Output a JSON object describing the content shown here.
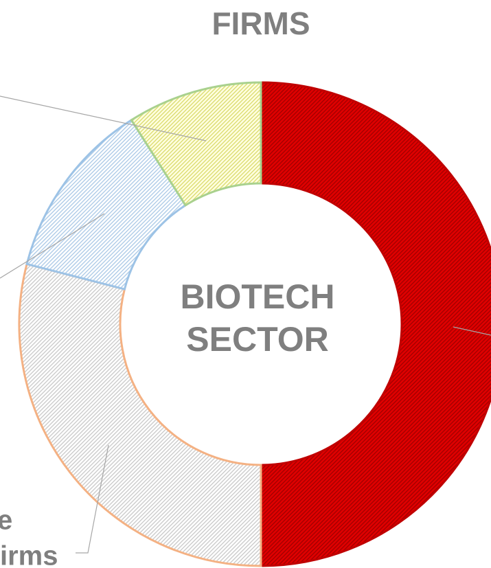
{
  "chart_data": {
    "type": "donut",
    "title": "FIRMS",
    "center_label": [
      "BIOTECH",
      "SECTOR"
    ],
    "categories": [
      null,
      [
        "e",
        "irms"
      ],
      null,
      null
    ],
    "values": [
      50,
      29,
      12,
      9
    ],
    "colors": [
      "#e00000",
      "#d9d9d9",
      "#bdd7ee",
      "#f2f28c"
    ],
    "edge_colors": [
      "#c00000",
      "#f4b183",
      "#9dc3e6",
      "#a9d18e"
    ]
  }
}
